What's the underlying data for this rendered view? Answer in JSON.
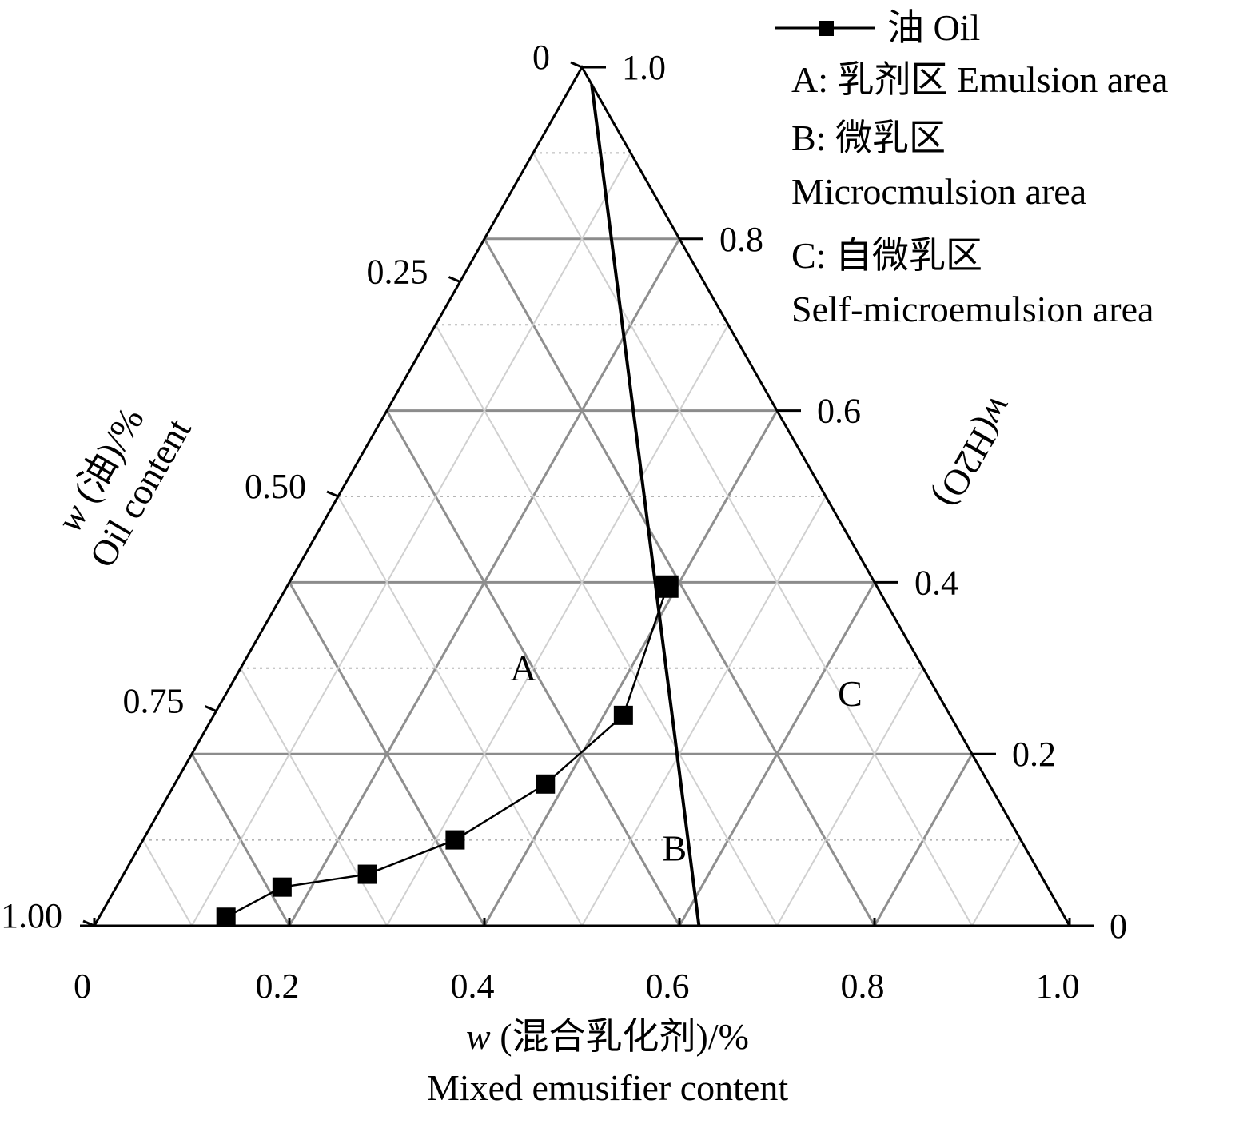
{
  "chart_data": {
    "type": "ternary",
    "legend": {
      "series_label": "油 Oil",
      "region_a": "A: 乳剂区 Emulsion area",
      "region_b_line1": "B: 微乳区",
      "region_b_line2": "Microcmulsion area",
      "region_c_line1": "C: 自微乳区",
      "region_c_line2": "Self-microemulsion area"
    },
    "axes": {
      "bottom": {
        "title_line1_italic": "w",
        "title_line1_rest": " (混合乳化剂)/%",
        "title_line2": "Mixed emusifier content",
        "ticks": [
          "0",
          "0.2",
          "0.4",
          "0.6",
          "0.8",
          "1.0"
        ],
        "tick_values": [
          0,
          0.2,
          0.4,
          0.6,
          0.8,
          1.0
        ]
      },
      "left": {
        "title_line1_italic": "w",
        "title_line1_rest": " (油)/%",
        "title_line2": "Oil content",
        "ticks": [
          "0",
          "0.25",
          "0.50",
          "0.75",
          "1.00"
        ],
        "tick_values": [
          0,
          0.25,
          0.5,
          0.75,
          1.0
        ]
      },
      "right": {
        "title_italic": "w",
        "title_rest": "(H2O)",
        "ticks": [
          "0",
          "0.2",
          "0.4",
          "0.6",
          "0.8",
          "1.0"
        ],
        "tick_values": [
          0,
          0.2,
          0.4,
          0.6,
          0.8,
          1.0
        ]
      }
    },
    "regions": [
      {
        "label": "A",
        "emulsifier": 0.29,
        "water": 0.3
      },
      {
        "label": "B",
        "emulsifier": 0.55,
        "water": 0.09
      },
      {
        "label": "C",
        "emulsifier": 0.64,
        "water": 0.27
      }
    ],
    "boundary_line": {
      "from": {
        "emulsifier": 0.62,
        "water": 0.0
      },
      "to": {
        "emulsifier": 0.02,
        "water": 0.98
      }
    },
    "series": [
      {
        "name": "油 Oil",
        "marker": "square",
        "points": [
          {
            "emulsifier": 0.13,
            "water": 0.01
          },
          {
            "emulsifier": 0.17,
            "water": 0.045
          },
          {
            "emulsifier": 0.25,
            "water": 0.06
          },
          {
            "emulsifier": 0.32,
            "water": 0.1
          },
          {
            "emulsifier": 0.38,
            "water": 0.165
          },
          {
            "emulsifier": 0.42,
            "water": 0.245
          },
          {
            "emulsifier": 0.39,
            "water": 0.395
          }
        ]
      }
    ],
    "grid": true,
    "legend_position": "top-right"
  }
}
